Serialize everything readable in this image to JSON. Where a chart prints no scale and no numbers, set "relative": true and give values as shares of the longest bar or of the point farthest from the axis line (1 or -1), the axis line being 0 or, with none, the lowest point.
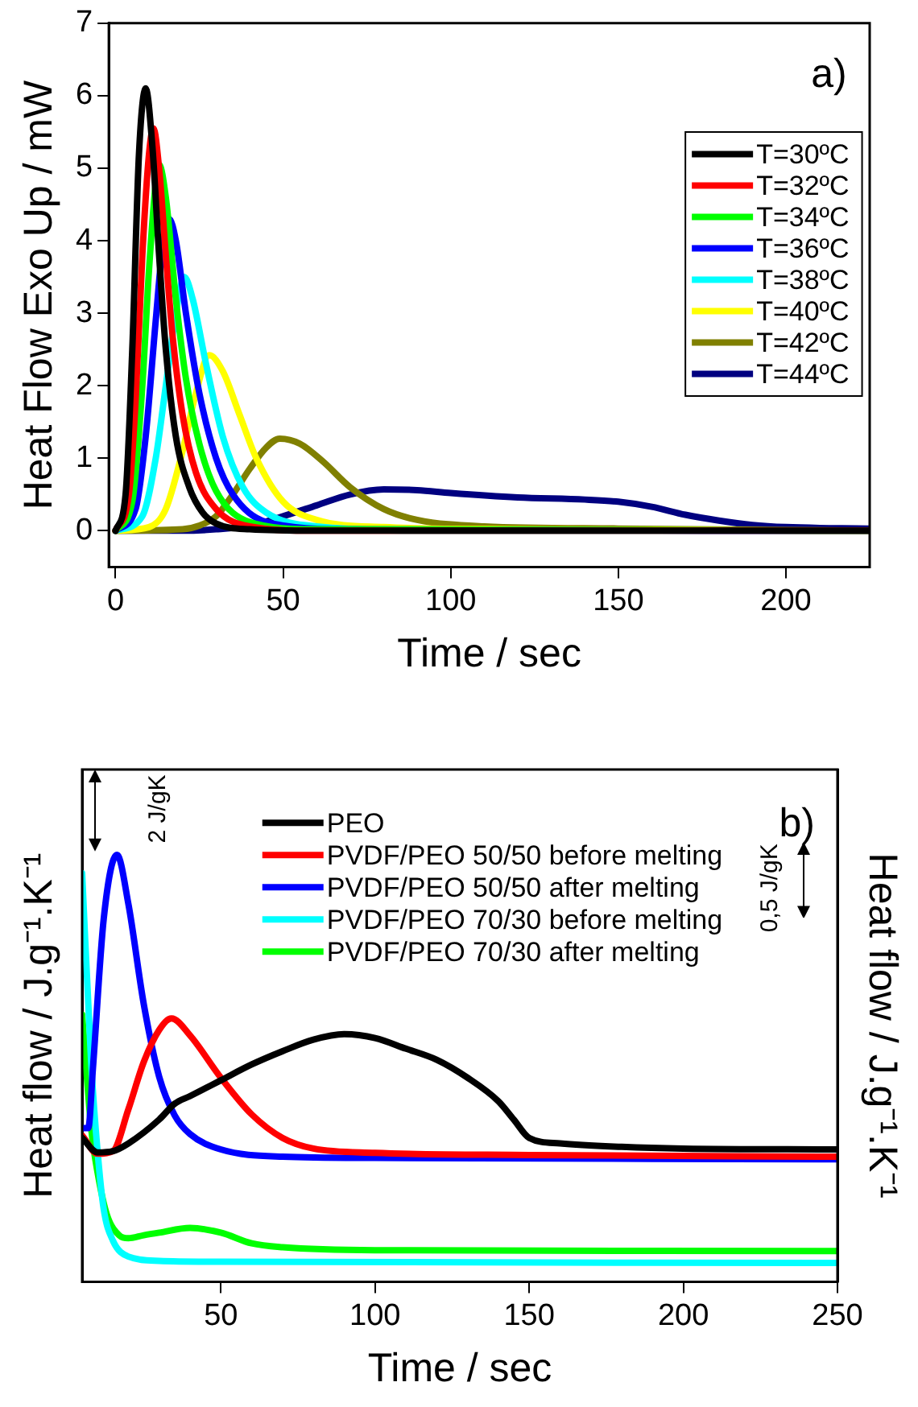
{
  "chart_data": [
    {
      "type": "line",
      "xlabel": "Time / sec",
      "ylabel": "Heat Flow Exo Up / mW",
      "annotations": [
        "a)"
      ],
      "xlim": [
        -2,
        225
      ],
      "ylim": [
        -0.5,
        7
      ],
      "xticks": [
        0,
        50,
        100,
        150,
        200
      ],
      "yticks": [
        0,
        1,
        2,
        3,
        4,
        5,
        6,
        7
      ],
      "grid": false,
      "legend": "top right",
      "marker": "none",
      "line_style": "solid",
      "series": [
        {
          "name": "T=30ºC",
          "color": "#000000",
          "x": [
            0,
            3,
            5,
            7,
            9,
            11,
            13,
            15,
            18,
            22,
            26,
            30,
            40,
            60,
            225
          ],
          "values": [
            0,
            0.5,
            2.5,
            5.2,
            6.1,
            5.3,
            3.8,
            2.5,
            1.3,
            0.6,
            0.25,
            0.1,
            0.02,
            0,
            0
          ]
        },
        {
          "name": "T=32ºC",
          "color": "#ff0000",
          "x": [
            0,
            4,
            6,
            8,
            10,
            11.3,
            13,
            15,
            17,
            20,
            24,
            30,
            40,
            60,
            225
          ],
          "values": [
            0,
            0.5,
            1.8,
            3.8,
            5.2,
            5.55,
            5,
            3.8,
            2.7,
            1.6,
            0.8,
            0.3,
            0.06,
            0,
            0
          ]
        },
        {
          "name": "T=34ºC",
          "color": "#00ff00",
          "x": [
            0,
            5,
            8,
            10,
            12,
            13,
            15,
            18,
            21,
            25,
            30,
            40,
            60,
            225
          ],
          "values": [
            0,
            0.4,
            2,
            3.6,
            4.8,
            5.05,
            4.6,
            3.2,
            2.1,
            1.2,
            0.55,
            0.12,
            0.02,
            0
          ]
        },
        {
          "name": "T=36ºC",
          "color": "#0000ff",
          "x": [
            0,
            6,
            9,
            12,
            14,
            16,
            18,
            21,
            25,
            30,
            35,
            45,
            70,
            225
          ],
          "values": [
            0,
            0.3,
            1.3,
            2.9,
            3.9,
            4.3,
            4,
            3,
            1.9,
            1,
            0.5,
            0.12,
            0.02,
            0
          ]
        },
        {
          "name": "T=38ºC",
          "color": "#00ffff",
          "x": [
            0,
            8,
            12,
            15,
            18,
            20.5,
            23,
            27,
            32,
            38,
            45,
            60,
            100,
            225
          ],
          "values": [
            0,
            0.2,
            1,
            2,
            3,
            3.5,
            3.2,
            2.3,
            1.3,
            0.6,
            0.25,
            0.06,
            0,
            0
          ]
        },
        {
          "name": "T=40ºC",
          "color": "#ffff00",
          "x": [
            0,
            10,
            15,
            20,
            24,
            28,
            32,
            37,
            42,
            50,
            60,
            80,
            120,
            225
          ],
          "values": [
            0,
            0.05,
            0.3,
            1.1,
            1.9,
            2.42,
            2.2,
            1.6,
            1,
            0.4,
            0.15,
            0.05,
            0.02,
            0
          ]
        },
        {
          "name": "T=42ºC",
          "color": "#808000",
          "x": [
            0,
            20,
            25,
            30,
            35,
            40,
            45,
            49,
            55,
            62,
            70,
            80,
            90,
            110,
            150,
            225
          ],
          "values": [
            0,
            0.02,
            0.07,
            0.2,
            0.5,
            0.85,
            1.15,
            1.27,
            1.2,
            0.95,
            0.6,
            0.3,
            0.15,
            0.06,
            0.03,
            0
          ]
        },
        {
          "name": "T=44ºC",
          "color": "#000080",
          "x": [
            0,
            20,
            30,
            40,
            50,
            60,
            70,
            80,
            90,
            100,
            120,
            140,
            150,
            160,
            170,
            180,
            190,
            200,
            225
          ],
          "values": [
            0,
            0,
            0.02,
            0.07,
            0.2,
            0.35,
            0.5,
            0.57,
            0.56,
            0.52,
            0.46,
            0.43,
            0.4,
            0.33,
            0.22,
            0.14,
            0.08,
            0.05,
            0.03
          ]
        }
      ]
    },
    {
      "type": "line",
      "xlabel": "Time / sec",
      "ylabel": "Heat flow / J.g⁻¹.K⁻¹",
      "y2label": "Heat flow / J.g⁻¹.K⁻¹",
      "annotations": [
        "b)",
        "2 J/gK",
        "0,5 J/gK"
      ],
      "xlim": [
        5,
        250
      ],
      "xticks": [
        50,
        100,
        150,
        200,
        250
      ],
      "relative": true,
      "grid": false,
      "legend": "top",
      "marker": "none",
      "line_style": "solid",
      "series": [
        {
          "name": "PEO",
          "color": "#000000",
          "x": [
            5,
            10,
            15,
            20,
            30,
            35,
            40,
            50,
            60,
            70,
            80,
            90,
            100,
            110,
            120,
            130,
            140,
            145,
            150,
            160,
            180,
            200,
            250
          ],
          "values": [
            0.337,
            0.303,
            0.306,
            0.324,
            0.38,
            0.417,
            0.435,
            0.472,
            0.509,
            0.54,
            0.567,
            0.58,
            0.571,
            0.546,
            0.52,
            0.478,
            0.423,
            0.38,
            0.337,
            0.324,
            0.316,
            0.312,
            0.31
          ]
        },
        {
          "name": "PVDF/PEO 50/50 before melting",
          "color": "#ff0000",
          "x": [
            5,
            10,
            15,
            20,
            25,
            30,
            34,
            40,
            50,
            60,
            70,
            80,
            100,
            150,
            250
          ],
          "values": [
            0.343,
            0.3,
            0.306,
            0.404,
            0.515,
            0.59,
            0.617,
            0.577,
            0.478,
            0.392,
            0.337,
            0.312,
            0.302,
            0.297,
            0.293
          ]
        },
        {
          "name": "PVDF/PEO 50/50 after melting",
          "color": "#0000ff",
          "x": [
            5,
            7,
            8.5,
            12,
            16.3,
            20,
            25,
            30,
            35,
            40,
            50,
            70,
            100,
            250
          ],
          "values": [
            0.36,
            0.36,
            0.5,
            0.85,
            1,
            0.885,
            0.65,
            0.48,
            0.39,
            0.346,
            0.31,
            0.293,
            0.29,
            0.287
          ]
        },
        {
          "name": "PVDF/PEO 70/30 before melting",
          "color": "#00ffff",
          "x": [
            5,
            8,
            10,
            12,
            15,
            20,
            30,
            50,
            250
          ],
          "values": [
            0.957,
            0.503,
            0.306,
            0.17,
            0.096,
            0.059,
            0.049,
            0.047,
            0.044
          ]
        },
        {
          "name": "PVDF/PEO 70/30 after melting",
          "color": "#00ff00",
          "x": [
            5,
            8,
            10,
            13,
            17,
            20,
            25,
            30,
            40,
            50,
            60,
            70,
            100,
            250
          ],
          "values": [
            0.626,
            0.355,
            0.256,
            0.158,
            0.109,
            0.102,
            0.109,
            0.115,
            0.126,
            0.115,
            0.09,
            0.081,
            0.074,
            0.072
          ]
        }
      ]
    }
  ]
}
